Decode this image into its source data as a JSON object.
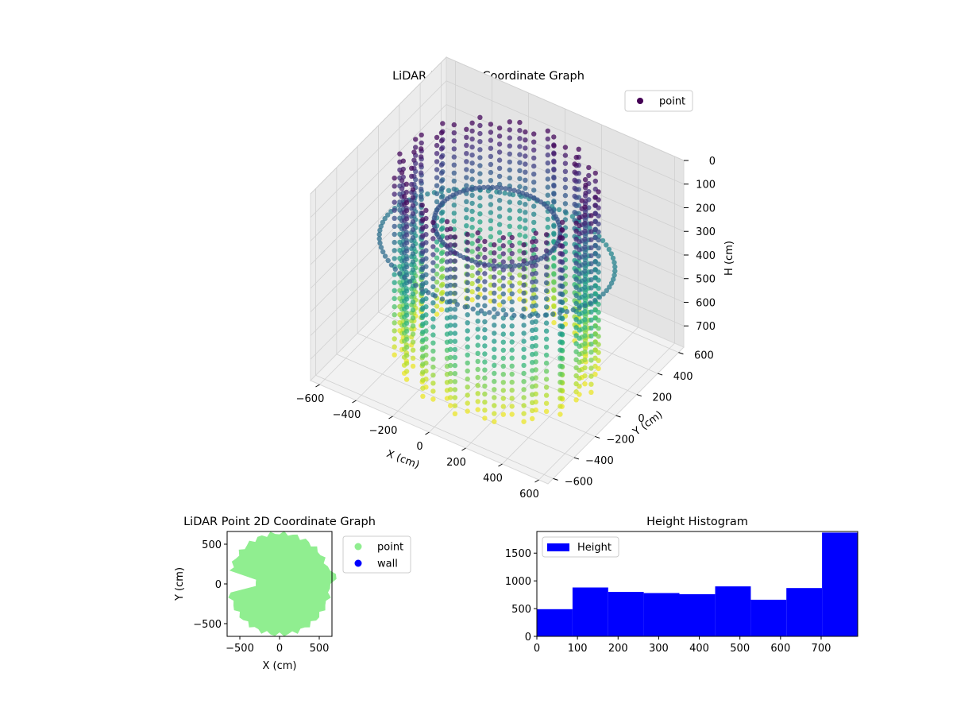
{
  "chart_data": [
    {
      "type": "scatter3d",
      "title": "LiDAR Point 3D Coordinate Graph",
      "xlabel": "X (cm)",
      "ylabel": "Y (cm)",
      "zlabel": "H (cm)",
      "xlim": [
        -650,
        650
      ],
      "ylim": [
        -650,
        650
      ],
      "zlim": [
        0,
        790
      ],
      "z_inverted": true,
      "x_ticks": [
        -600,
        -400,
        -200,
        0,
        200,
        400,
        600
      ],
      "y_ticks": [
        -600,
        -400,
        -200,
        0,
        200,
        400,
        600
      ],
      "z_ticks": [
        0,
        100,
        200,
        300,
        400,
        500,
        600,
        700
      ],
      "colormap": "viridis",
      "legend": [
        "point"
      ],
      "legend_position": "upper-right",
      "series": [
        {
          "name": "point",
          "shape": "cylindrical room scan (radius ~450 cm)",
          "height_range": [
            0,
            790
          ],
          "color_by": "height",
          "color_low": "#440154",
          "color_high": "#fde725"
        }
      ]
    },
    {
      "type": "scatter",
      "title": "LiDAR Point 2D Coordinate Graph",
      "xlabel": "X (cm)",
      "ylabel": "Y (cm)",
      "xlim": [
        -660,
        660
      ],
      "ylim": [
        -660,
        660
      ],
      "x_ticks": [
        -500,
        0,
        500
      ],
      "y_ticks": [
        -500,
        0,
        500
      ],
      "legend_position": "outside-right",
      "series": [
        {
          "name": "point",
          "color": "#90ee90"
        },
        {
          "name": "wall",
          "color": "#0000ff"
        }
      ]
    },
    {
      "type": "bar",
      "title": "Height Histogram",
      "xlabel": "",
      "ylabel": "",
      "xlim": [
        0,
        790
      ],
      "ylim": [
        0,
        1890
      ],
      "x_ticks": [
        0,
        100,
        200,
        300,
        400,
        500,
        600,
        700
      ],
      "y_ticks": [
        0,
        500,
        1000,
        1500
      ],
      "legend": [
        "Height"
      ],
      "legend_position": "upper-left",
      "color": "#0000ff",
      "bin_edges": [
        0,
        87.8,
        175.6,
        263.3,
        351.1,
        438.9,
        526.7,
        614.4,
        702.2,
        790
      ],
      "counts": [
        490,
        880,
        800,
        780,
        760,
        900,
        660,
        870,
        1870
      ]
    }
  ]
}
